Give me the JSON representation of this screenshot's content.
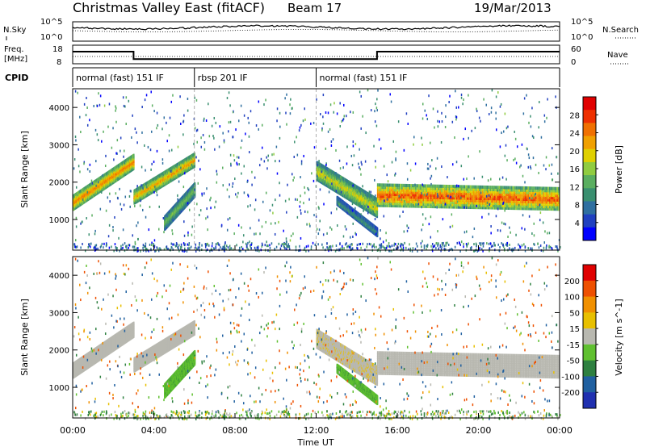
{
  "header": {
    "station": "Christmas Valley East (fitACF)",
    "beam": "Beam 17",
    "date": "19/Mar/2013"
  },
  "noise_panel": {
    "left_label": "N.Sky",
    "right_label": "N.Search",
    "left_ticks": [
      "10^5",
      "10^0"
    ],
    "right_ticks": [
      "10^5",
      "10^0"
    ]
  },
  "freq_panel": {
    "left_label_1": "Freq.",
    "left_label_2": "[MHz]",
    "left_ticks": [
      "18",
      "8"
    ],
    "right_label": "Nave",
    "right_ticks": [
      "60",
      "0"
    ]
  },
  "cpid_panel": {
    "label": "CPID",
    "modes": [
      {
        "name": "normal (fast) 151 IF",
        "start": 0,
        "end": 6
      },
      {
        "name": "rbsp 201 IF",
        "start": 6,
        "end": 12
      },
      {
        "name": "normal (fast) 151 IF",
        "start": 12,
        "end": 24
      }
    ]
  },
  "power_colorbar": {
    "title": "Power [dB]",
    "ticks": [
      "28",
      "24",
      "20",
      "16",
      "12",
      "8",
      "4"
    ],
    "colors": [
      "#0000ff",
      "#2040c0",
      "#2f6fa0",
      "#3a8f70",
      "#5aae60",
      "#90cc40",
      "#e0d000",
      "#f0a000",
      "#f07000",
      "#ee3000",
      "#e00000"
    ]
  },
  "velocity_colorbar": {
    "title": "Velocity [m s^-1]",
    "ticks": [
      "200",
      "100",
      "50",
      "15",
      "-15",
      "-50",
      "-100",
      "-200"
    ],
    "colors": [
      "#2030b0",
      "#2060a0",
      "#2e8040",
      "#60c030",
      "#b8b8b0",
      "#e8c000",
      "#f09000",
      "#ee5000",
      "#e00000"
    ]
  },
  "x_ticks": [
    "00:00",
    "04:00",
    "08:00",
    "12:00",
    "16:00",
    "20:00",
    "00:00"
  ],
  "x_label": "Time UT",
  "y_label": "Slant Range [km]",
  "y_ticks": [
    "1000",
    "2000",
    "3000",
    "4000"
  ],
  "chart_data": {
    "type": "heatmap",
    "title": "Christmas Valley East (fitACF) Beam 17 19/Mar/2013",
    "xlabel": "Time UT",
    "ylabel": "Slant Range [km]",
    "xlim": [
      0,
      24
    ],
    "ylim": [
      180,
      4500
    ],
    "power_range_db": [
      0,
      30
    ],
    "velocity_range_ms": [
      -200,
      200
    ],
    "frequency_mhz": [
      {
        "start": 0,
        "end": 3,
        "value": 14.5
      },
      {
        "start": 3,
        "end": 15,
        "value": 10.5
      },
      {
        "start": 15,
        "end": 24,
        "value": 14.5
      }
    ],
    "scatter_regions": [
      {
        "name": "main-band-A",
        "t": [
          0,
          3
        ],
        "r_start": 1450,
        "r_end": 2550,
        "thickness": 350,
        "power": 24,
        "velocity": 0
      },
      {
        "name": "main-band-B",
        "t": [
          3,
          6
        ],
        "r_start": 1600,
        "r_end": 2600,
        "thickness": 320,
        "power": 22,
        "velocity": 0
      },
      {
        "name": "near-band",
        "t": [
          4.5,
          6
        ],
        "r_start": 900,
        "r_end": 1800,
        "thickness": 320,
        "power": 14,
        "velocity": 40
      },
      {
        "name": "morning-echo",
        "t": [
          12,
          15
        ],
        "r_start": 2300,
        "r_end": 1300,
        "thickness": 450,
        "power": 18,
        "velocity": -5
      },
      {
        "name": "afternoon-band",
        "t": [
          15,
          24
        ],
        "r_start": 1650,
        "r_end": 1550,
        "thickness": 550,
        "power": 26,
        "velocity": 0
      },
      {
        "name": "descending-echo",
        "t": [
          13,
          15
        ],
        "r_start": 1500,
        "r_end": 650,
        "thickness": 180,
        "power": 10,
        "velocity": 40
      }
    ]
  }
}
